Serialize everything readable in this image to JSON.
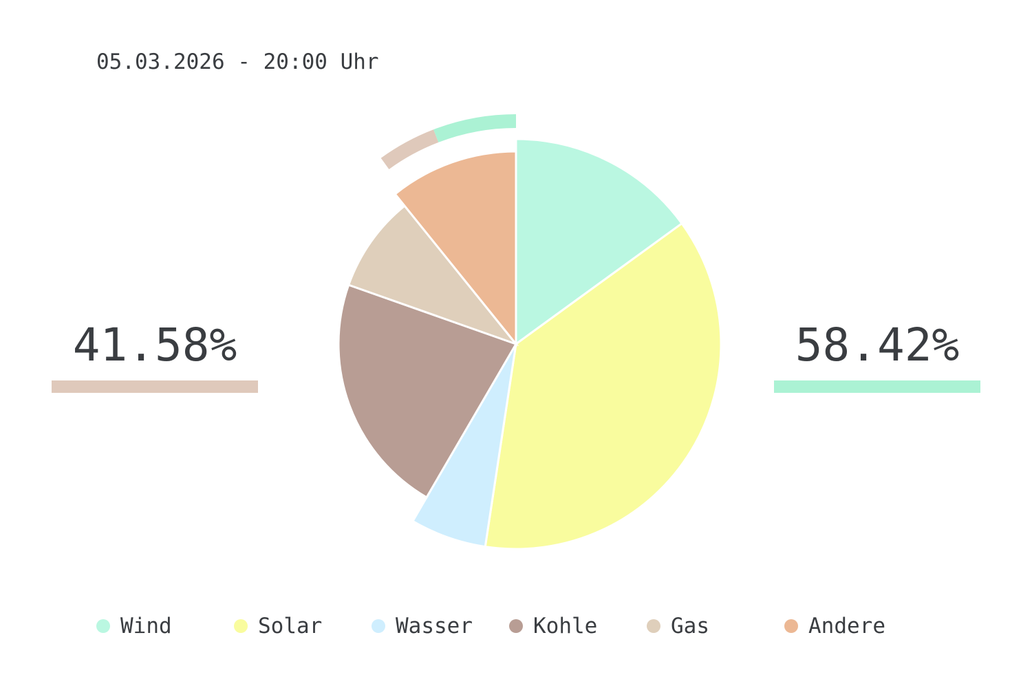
{
  "header": {
    "timestamp": "05.03.2026 - 20:00 Uhr"
  },
  "summary": {
    "left": {
      "value": "41.58%",
      "color": "#dfc9bb"
    },
    "right": {
      "value": "58.42%",
      "color": "#abf2d4"
    }
  },
  "legend": [
    {
      "label": "Wind",
      "color": "#baf7e1"
    },
    {
      "label": "Solar",
      "color": "#f9fc9e"
    },
    {
      "label": "Wasser",
      "color": "#cfeefe"
    },
    {
      "label": "Kohle",
      "color": "#b89d94"
    },
    {
      "label": "Gas",
      "color": "#dfcfbb"
    },
    {
      "label": "Andere",
      "color": "#ecb894"
    }
  ],
  "chart_data": {
    "type": "pie",
    "series": [
      {
        "name": "Wind",
        "value": 15.0
      },
      {
        "name": "Solar",
        "value": 37.4
      },
      {
        "name": "Wasser",
        "value": 6.0
      },
      {
        "name": "Kohle",
        "value": 22.0
      },
      {
        "name": "Gas",
        "value": 8.8
      },
      {
        "name": "Andere",
        "value": 10.8
      }
    ],
    "outer_ring": [
      {
        "value": 41.58,
        "color": "#dfc9bb"
      },
      {
        "value": 58.42,
        "color": "#abf2d4"
      }
    ],
    "legend_position": "bottom"
  }
}
